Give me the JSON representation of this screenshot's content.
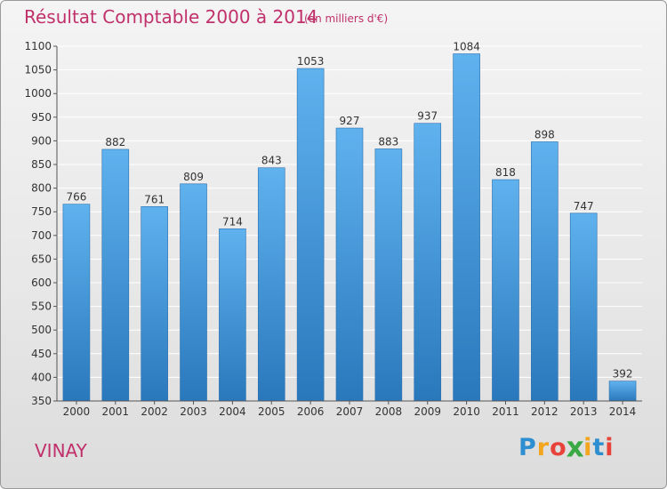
{
  "colors": {
    "title": "#c0306a",
    "bar_light": "#5fb2ee",
    "bar_dark": "#2a78bc",
    "axis": "#555555",
    "grid": "#ffffff"
  },
  "chart_data": {
    "type": "bar",
    "title": "Résultat Comptable 2000 à 2014",
    "subtitle": "(en milliers d'€)",
    "xlabel": "",
    "ylabel": "",
    "categories": [
      "2000",
      "2001",
      "2002",
      "2003",
      "2004",
      "2005",
      "2006",
      "2007",
      "2008",
      "2009",
      "2010",
      "2011",
      "2012",
      "2013",
      "2014"
    ],
    "values": [
      766,
      882,
      761,
      809,
      714,
      843,
      1053,
      927,
      883,
      937,
      1084,
      818,
      898,
      747,
      392
    ],
    "ylim": [
      350,
      1100
    ],
    "yticks": [
      350,
      400,
      450,
      500,
      550,
      600,
      650,
      700,
      750,
      800,
      850,
      900,
      950,
      1000,
      1050,
      1100
    ],
    "grid": true,
    "legend": "none"
  },
  "footer": {
    "city": "VINAY",
    "logo_letters": [
      {
        "char": "P",
        "color": "#2e8fd0"
      },
      {
        "char": "r",
        "color": "#f2a51d"
      },
      {
        "char": "o",
        "color": "#e7433a"
      },
      {
        "char": "x",
        "color": "#3aa944"
      },
      {
        "char": "i",
        "color": "#f2a51d"
      },
      {
        "char": "t",
        "color": "#2e8fd0"
      },
      {
        "char": "i",
        "color": "#e7433a"
      }
    ]
  }
}
